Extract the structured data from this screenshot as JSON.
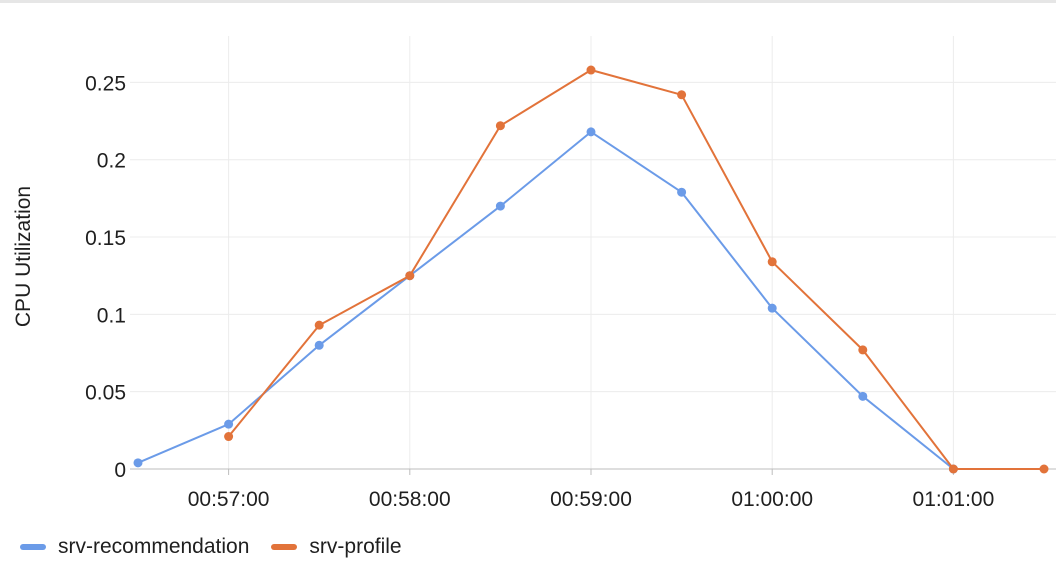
{
  "chart_data": {
    "type": "line",
    "title": "",
    "xlabel": "",
    "ylabel": "CPU Utilization",
    "ylim": [
      0,
      0.28
    ],
    "y_ticks": [
      0,
      0.05,
      0.1,
      0.15,
      0.2,
      0.25
    ],
    "y_tick_labels": [
      "0",
      "0.05",
      "0.1",
      "0.15",
      "0.2",
      "0.25"
    ],
    "x_range": [
      "00:56:30",
      "01:01:30"
    ],
    "x_ticks": [
      "00:57:00",
      "00:58:00",
      "00:59:00",
      "01:00:00",
      "01:01:00"
    ],
    "grid": true,
    "legend_position": "bottom-left",
    "series": [
      {
        "name": "srv-recommendation",
        "color": "#6b9be8",
        "points": [
          {
            "x": "00:56:30",
            "y": 0.004
          },
          {
            "x": "00:57:00",
            "y": 0.029
          },
          {
            "x": "00:57:30",
            "y": 0.08
          },
          {
            "x": "00:58:00",
            "y": 0.125
          },
          {
            "x": "00:58:30",
            "y": 0.17
          },
          {
            "x": "00:59:00",
            "y": 0.218
          },
          {
            "x": "00:59:30",
            "y": 0.179
          },
          {
            "x": "01:00:00",
            "y": 0.104
          },
          {
            "x": "01:00:30",
            "y": 0.047
          },
          {
            "x": "01:01:00",
            "y": 0.0
          }
        ]
      },
      {
        "name": "srv-profile",
        "color": "#e2733a",
        "points": [
          {
            "x": "00:57:00",
            "y": 0.021
          },
          {
            "x": "00:57:30",
            "y": 0.093
          },
          {
            "x": "00:58:00",
            "y": 0.125
          },
          {
            "x": "00:58:30",
            "y": 0.222
          },
          {
            "x": "00:59:00",
            "y": 0.258
          },
          {
            "x": "00:59:30",
            "y": 0.242
          },
          {
            "x": "01:00:00",
            "y": 0.134
          },
          {
            "x": "01:00:30",
            "y": 0.077
          },
          {
            "x": "01:01:00",
            "y": 0.0
          },
          {
            "x": "01:01:30",
            "y": 0.0
          }
        ]
      }
    ]
  }
}
